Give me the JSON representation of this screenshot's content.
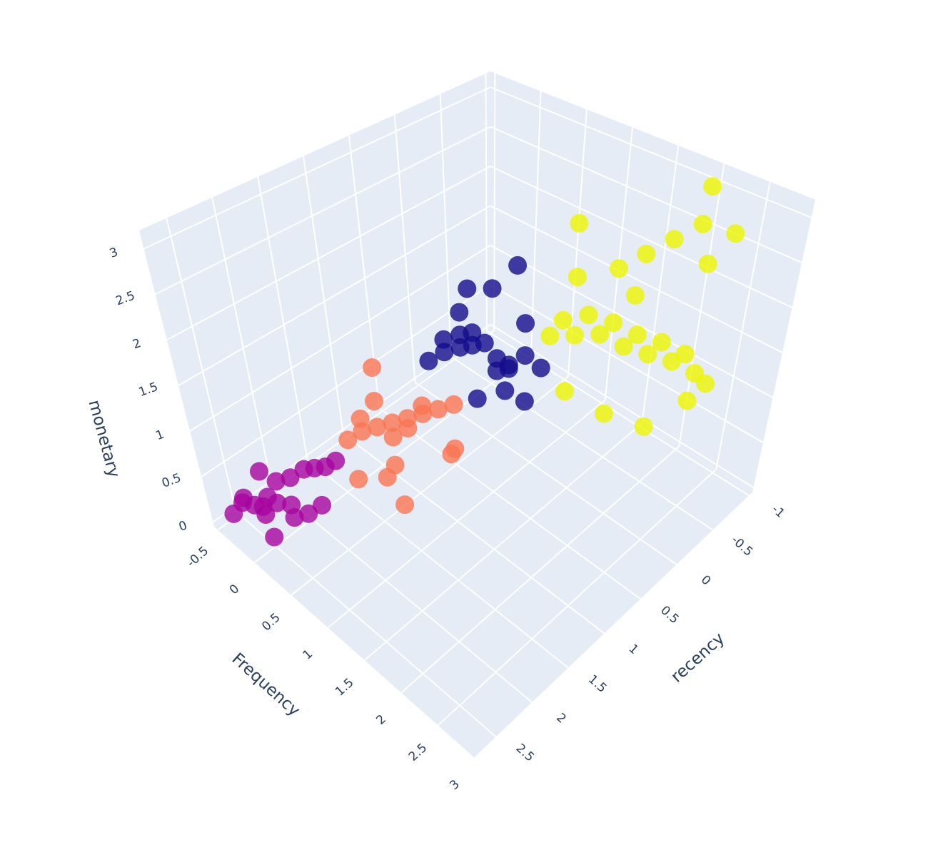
{
  "chart_data": {
    "type": "scatter3d",
    "x_label": "Frequency",
    "y_label": "recency",
    "z_label": "monetary",
    "xlim": [
      -0.55,
      3.0
    ],
    "ylim": [
      -1.05,
      2.8
    ],
    "zlim": [
      -0.05,
      3.2
    ],
    "xticks": [
      -0.5,
      0,
      0.5,
      1,
      1.5,
      2,
      2.5,
      3
    ],
    "yticks": [
      -1,
      -0.5,
      0,
      0.5,
      1,
      1.5,
      2,
      2.5
    ],
    "zticks": [
      0,
      0.5,
      1,
      1.5,
      2,
      2.5,
      3
    ],
    "grid": true,
    "series": [
      {
        "color": "#edf500",
        "x": [
          1.2,
          1.4,
          1.6,
          1.8,
          2.0,
          2.2,
          2.4,
          1.3,
          1.5,
          1.7,
          1.9,
          2.1,
          2.3,
          2.5,
          1.6,
          1.8,
          2.0,
          1.4,
          2.2,
          2.6,
          1.3,
          1.5,
          1.9,
          2.3,
          1.1,
          2.0,
          2.4,
          1.7
        ],
        "y": [
          0.0,
          -0.1,
          -0.2,
          -0.3,
          -0.4,
          -0.5,
          -0.6,
          -0.05,
          -0.15,
          -0.25,
          -0.35,
          -0.45,
          -0.55,
          -0.65,
          -0.7,
          -0.8,
          -0.9,
          -0.6,
          -0.8,
          -0.3,
          -0.2,
          0.1,
          0.0,
          -0.1,
          -0.4,
          -0.95,
          -0.85,
          -0.5
        ],
        "z": [
          1.5,
          1.55,
          1.6,
          1.5,
          1.45,
          1.4,
          1.3,
          1.7,
          1.8,
          1.75,
          1.65,
          1.6,
          1.5,
          1.2,
          2.2,
          2.4,
          2.6,
          2.0,
          2.3,
          1.3,
          2.1,
          1.1,
          1.0,
          1.0,
          2.5,
          3.0,
          2.7,
          1.9
        ]
      },
      {
        "color": "#130c8c",
        "x": [
          0.4,
          0.5,
          0.6,
          0.7,
          0.8,
          0.9,
          1.0,
          1.1,
          1.2,
          0.55,
          0.65,
          0.75,
          0.85,
          0.95,
          1.05,
          0.7,
          0.8,
          0.6,
          0.9,
          1.0,
          0.5,
          1.2
        ],
        "y": [
          0.7,
          0.6,
          0.5,
          0.45,
          0.4,
          0.35,
          0.3,
          0.2,
          0.1,
          0.65,
          0.55,
          0.5,
          0.3,
          0.25,
          0.4,
          0.2,
          0.0,
          0.5,
          0.6,
          0.1,
          0.3,
          0.3
        ],
        "z": [
          1.2,
          1.3,
          1.35,
          1.4,
          1.45,
          1.3,
          1.25,
          1.35,
          1.2,
          1.5,
          1.55,
          1.6,
          1.1,
          1.15,
          1.05,
          1.9,
          2.1,
          1.75,
          1.0,
          1.6,
          1.85,
          0.95
        ]
      },
      {
        "color": "#fa7553",
        "x": [
          0.1,
          0.2,
          0.3,
          0.4,
          0.5,
          0.6,
          0.7,
          0.8,
          0.35,
          0.45,
          0.55,
          0.25,
          0.65,
          0.9,
          1.0,
          0.3,
          0.5,
          0.7,
          0.2,
          0.6
        ],
        "y": [
          1.5,
          1.4,
          1.3,
          1.2,
          1.1,
          1.0,
          0.9,
          0.8,
          1.35,
          1.25,
          1.15,
          1.45,
          1.05,
          0.95,
          1.0,
          1.6,
          1.3,
          1.4,
          1.2,
          1.5
        ],
        "z": [
          0.6,
          0.7,
          0.75,
          0.8,
          0.85,
          0.9,
          0.95,
          1.0,
          1.1,
          0.7,
          0.8,
          0.9,
          1.05,
          0.6,
          0.75,
          0.35,
          0.45,
          0.2,
          1.3,
          0.5
        ]
      },
      {
        "color": "#a6049f",
        "x": [
          -0.45,
          -0.4,
          -0.35,
          -0.3,
          -0.25,
          -0.2,
          -0.15,
          -0.1,
          -0.05,
          0,
          0.05,
          0.1,
          0.15,
          0.2,
          0.25,
          -0.3,
          -0.2,
          0.0,
          0.1,
          0.3
        ],
        "y": [
          2.6,
          2.5,
          2.4,
          2.55,
          2.3,
          2.2,
          2.45,
          2.1,
          2.35,
          2.0,
          2.25,
          1.95,
          2.15,
          1.9,
          2.05,
          2.3,
          2.4,
          2.5,
          2.3,
          1.85
        ],
        "z": [
          0.05,
          0.15,
          0.1,
          0.3,
          0.2,
          0.35,
          0.25,
          0.4,
          0.3,
          0.5,
          0.15,
          0.55,
          0.2,
          0.6,
          0.3,
          0.45,
          0.1,
          0.05,
          0.35,
          0.7
        ]
      }
    ]
  }
}
